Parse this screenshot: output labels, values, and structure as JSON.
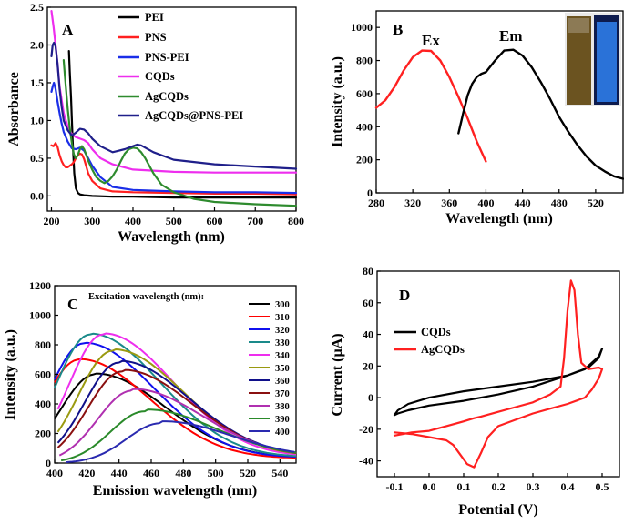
{
  "chart_data": [
    {
      "panel": "A",
      "type": "line",
      "xlabel": "Wavelength (nm)",
      "ylabel": "Absorbance",
      "xlim": [
        190,
        800
      ],
      "ylim": [
        -0.2,
        2.5
      ],
      "xticks": [
        "200",
        "300",
        "400",
        "500",
        "600",
        "700",
        "800"
      ],
      "yticks": [
        "0.0",
        "0.5",
        "1.0",
        "1.5",
        "2.0",
        "2.5"
      ],
      "legend_position": "top-right",
      "series": [
        {
          "name": "PEI",
          "color": "#000000",
          "x": [
            243,
            245,
            248,
            252,
            256,
            260,
            265,
            270,
            280,
            300,
            350,
            400,
            500,
            600,
            700,
            800
          ],
          "y": [
            1.92,
            1.65,
            1.3,
            0.75,
            0.3,
            0.1,
            0.04,
            0.02,
            0.01,
            0.0,
            -0.01,
            -0.01,
            -0.02,
            -0.02,
            -0.02,
            -0.02
          ]
        },
        {
          "name": "PNS",
          "color": "#ff2020",
          "x": [
            200,
            205,
            210,
            215,
            220,
            225,
            230,
            235,
            240,
            245,
            250,
            255,
            260,
            265,
            270,
            275,
            280,
            285,
            290,
            300,
            320,
            350,
            400,
            500,
            600,
            700,
            800
          ],
          "y": [
            0.67,
            0.66,
            0.7,
            0.65,
            0.54,
            0.46,
            0.41,
            0.38,
            0.38,
            0.4,
            0.42,
            0.45,
            0.5,
            0.54,
            0.56,
            0.55,
            0.49,
            0.4,
            0.3,
            0.2,
            0.1,
            0.06,
            0.05,
            0.04,
            0.03,
            0.03,
            0.02
          ]
        },
        {
          "name": "PNS-PEI",
          "color": "#1a2ee8",
          "x": [
            200,
            203,
            206,
            210,
            215,
            220,
            225,
            230,
            240,
            250,
            260,
            270,
            280,
            290,
            300,
            320,
            350,
            400,
            500,
            600,
            700,
            800
          ],
          "y": [
            1.38,
            1.45,
            1.5,
            1.42,
            1.25,
            1.1,
            0.96,
            0.85,
            0.72,
            0.63,
            0.62,
            0.64,
            0.6,
            0.5,
            0.4,
            0.25,
            0.12,
            0.08,
            0.06,
            0.05,
            0.05,
            0.04
          ]
        },
        {
          "name": "CQDs",
          "color": "#ee2eee",
          "x": [
            200,
            205,
            210,
            215,
            220,
            230,
            240,
            250,
            260,
            270,
            280,
            290,
            300,
            320,
            350,
            400,
            500,
            600,
            700,
            800
          ],
          "y": [
            2.45,
            2.25,
            2.0,
            1.75,
            1.45,
            1.1,
            0.92,
            0.82,
            0.78,
            0.76,
            0.74,
            0.7,
            0.62,
            0.5,
            0.42,
            0.35,
            0.32,
            0.31,
            0.31,
            0.31
          ]
        },
        {
          "name": "AgCQDs",
          "color": "#2e8b2e",
          "x": [
            230,
            233,
            236,
            240,
            245,
            250,
            255,
            260,
            265,
            270,
            275,
            280,
            285,
            290,
            300,
            310,
            320,
            330,
            340,
            350,
            360,
            370,
            380,
            390,
            400,
            410,
            420,
            430,
            440,
            450,
            470,
            500,
            550,
            600,
            700,
            800
          ],
          "y": [
            1.8,
            1.6,
            1.4,
            1.15,
            0.9,
            0.7,
            0.55,
            0.5,
            0.55,
            0.62,
            0.66,
            0.62,
            0.55,
            0.47,
            0.35,
            0.25,
            0.2,
            0.17,
            0.2,
            0.26,
            0.35,
            0.46,
            0.56,
            0.62,
            0.64,
            0.63,
            0.58,
            0.5,
            0.4,
            0.3,
            0.15,
            0.05,
            -0.04,
            -0.08,
            -0.11,
            -0.13
          ]
        },
        {
          "name": "AgCQDs@PNS-PEI",
          "color": "#1f1f8a",
          "x": [
            200,
            203,
            206,
            210,
            215,
            220,
            225,
            230,
            240,
            250,
            260,
            270,
            280,
            290,
            300,
            320,
            350,
            380,
            400,
            410,
            420,
            430,
            450,
            500,
            600,
            700,
            800
          ],
          "y": [
            1.85,
            2.0,
            2.03,
            1.98,
            1.75,
            1.42,
            1.18,
            1.0,
            0.87,
            0.8,
            0.84,
            0.89,
            0.88,
            0.83,
            0.76,
            0.66,
            0.58,
            0.62,
            0.66,
            0.68,
            0.67,
            0.64,
            0.58,
            0.48,
            0.42,
            0.39,
            0.36
          ]
        }
      ]
    },
    {
      "panel": "B",
      "type": "line",
      "xlabel": "Wavelength (nm)",
      "ylabel": "Intensity (a.u.)",
      "xlim": [
        280,
        550
      ],
      "ylim": [
        0,
        1100
      ],
      "xticks": [
        "280",
        "320",
        "360",
        "400",
        "440",
        "480",
        "520"
      ],
      "yticks": [
        "0",
        "200",
        "400",
        "600",
        "800",
        "1000"
      ],
      "annotations": [
        "Ex",
        "Em"
      ],
      "series": [
        {
          "name": "Ex",
          "color": "#ff2020",
          "x": [
            280,
            290,
            300,
            310,
            320,
            330,
            340,
            350,
            360,
            370,
            380,
            390,
            400
          ],
          "y": [
            515,
            560,
            640,
            740,
            820,
            860,
            858,
            800,
            700,
            580,
            450,
            310,
            190
          ]
        },
        {
          "name": "Em",
          "color": "#000000",
          "x": [
            370,
            375,
            380,
            385,
            390,
            395,
            400,
            410,
            420,
            430,
            440,
            450,
            460,
            470,
            480,
            490,
            500,
            510,
            520,
            530,
            540,
            550
          ],
          "y": [
            360,
            480,
            590,
            660,
            700,
            720,
            730,
            800,
            860,
            865,
            830,
            760,
            670,
            570,
            460,
            370,
            290,
            220,
            165,
            130,
            100,
            85
          ]
        }
      ]
    },
    {
      "panel": "C",
      "type": "line",
      "xlabel": "Emission wavelength (nm)",
      "ylabel": "Intensity (a.u.)",
      "legend_title": "Excitation wavelength (nm):",
      "xlim": [
        400,
        550
      ],
      "ylim": [
        0,
        1200
      ],
      "xticks": [
        "400",
        "420",
        "440",
        "460",
        "480",
        "500",
        "520",
        "540"
      ],
      "yticks": [
        "0",
        "200",
        "400",
        "600",
        "800",
        "1000",
        "1200"
      ],
      "series": [
        {
          "name": "300",
          "color": "#000000",
          "peak": 600,
          "center": 425,
          "start": 400,
          "end_value": 80
        },
        {
          "name": "310",
          "color": "#ff0000",
          "peak": 700,
          "center": 415,
          "start": 400,
          "end_value": 75
        },
        {
          "name": "320",
          "color": "#1010ee",
          "peak": 810,
          "center": 418,
          "start": 400,
          "end_value": 85
        },
        {
          "name": "330",
          "color": "#1a8a8a",
          "peak": 870,
          "center": 422,
          "start": 400,
          "end_value": 90
        },
        {
          "name": "340",
          "color": "#ee2eee",
          "peak": 870,
          "center": 430,
          "start": 402,
          "end_value": 95
        },
        {
          "name": "350",
          "color": "#9a9a10",
          "peak": 760,
          "center": 436,
          "start": 402,
          "end_value": 100
        },
        {
          "name": "360",
          "color": "#10108a",
          "peak": 680,
          "center": 440,
          "start": 402,
          "end_value": 105
        },
        {
          "name": "370",
          "color": "#8a1010",
          "peak": 620,
          "center": 442,
          "start": 402,
          "end_value": 95
        },
        {
          "name": "380",
          "color": "#b030b0",
          "peak": 490,
          "center": 448,
          "start": 403,
          "end_value": 90
        },
        {
          "name": "390",
          "color": "#2a8a2a",
          "peak": 350,
          "center": 456,
          "start": 404,
          "end_value": 85
        },
        {
          "name": "400",
          "color": "#2a2ab0",
          "peak": 270,
          "center": 466,
          "start": 407,
          "end_value": 75
        }
      ]
    },
    {
      "panel": "D",
      "type": "line",
      "xlabel": "Potential (V)",
      "ylabel": "Current (µA)",
      "xlim": [
        -0.15,
        0.55
      ],
      "ylim": [
        -50,
        80
      ],
      "xticks": [
        "-0.1",
        "0.0",
        "0.1",
        "0.2",
        "0.3",
        "0.4",
        "0.5"
      ],
      "yticks": [
        "-40",
        "-20",
        "0",
        "20",
        "40",
        "60",
        "80"
      ],
      "legend_position": "upper-left",
      "series": [
        {
          "name": "CQDs",
          "color": "#000000",
          "x": [
            -0.1,
            -0.09,
            -0.06,
            0.0,
            0.1,
            0.2,
            0.3,
            0.4,
            0.46,
            0.49,
            0.5,
            0.49,
            0.45,
            0.4,
            0.3,
            0.2,
            0.1,
            0.0,
            -0.06,
            -0.09,
            -0.1
          ],
          "y": [
            -11,
            -8,
            -4,
            0,
            4,
            7,
            10,
            14,
            19,
            25,
            31,
            26,
            18,
            14,
            7,
            2,
            -2,
            -5,
            -8,
            -10,
            -11
          ]
        },
        {
          "name": "AgCQDs",
          "color": "#ff2020",
          "x": [
            -0.1,
            -0.05,
            0.0,
            0.05,
            0.1,
            0.13,
            0.15,
            0.2,
            0.25,
            0.3,
            0.35,
            0.38,
            0.39,
            0.4,
            0.41,
            0.42,
            0.43,
            0.44,
            0.46,
            0.49,
            0.5,
            0.49,
            0.47,
            0.45,
            0.4,
            0.35,
            0.3,
            0.25,
            0.2,
            0.17,
            0.15,
            0.13,
            0.11,
            0.09,
            0.07,
            0.05,
            0.0,
            -0.05,
            -0.1
          ],
          "y": [
            -24,
            -22,
            -21,
            -18,
            -15,
            -13,
            -12,
            -9,
            -6,
            -3,
            2,
            7,
            25,
            55,
            74,
            68,
            40,
            22,
            18,
            19,
            18,
            12,
            5,
            0,
            -4,
            -7,
            -10,
            -14,
            -18,
            -25,
            -35,
            -44,
            -42,
            -36,
            -30,
            -27,
            -25,
            -23,
            -22
          ]
        }
      ]
    }
  ]
}
